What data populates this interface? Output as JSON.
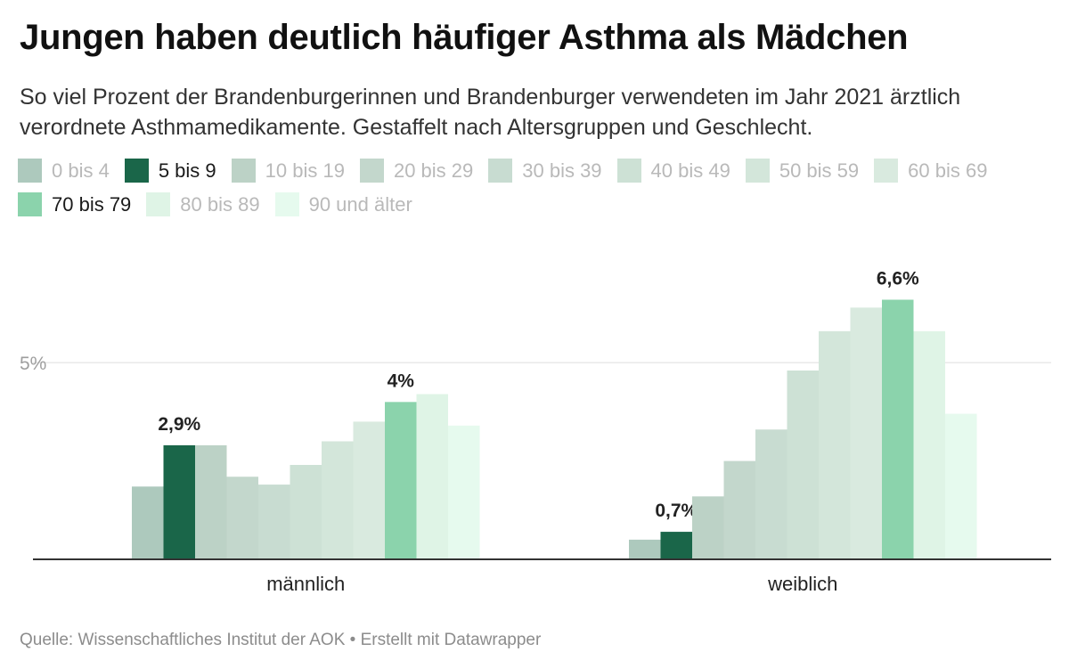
{
  "header": {
    "title": "Jungen haben deutlich häufiger Asthma als Mädchen",
    "subtitle": "So viel Prozent der Brandenburgerinnen und Brandenburger verwendeten im Jahr 2021 ärztlich verordnete Asthmamedikamente. Gestaffelt nach Altersgruppen und Geschlecht."
  },
  "footer": {
    "source": "Quelle: Wissenschaftliches Institut der AOK • Erstellt mit Datawrapper"
  },
  "chart_data": {
    "type": "bar",
    "title": "Jungen haben deutlich häufiger Asthma als Mädchen",
    "subtitle": "So viel Prozent der Brandenburgerinnen und Brandenburger verwendeten im Jahr 2021 ärztlich verordnete Asthmamedikamente. Gestaffelt nach Altersgruppen und Geschlecht.",
    "categories": [
      "männlich",
      "weiblich"
    ],
    "ylim": [
      0,
      7.2
    ],
    "y_ticks": [
      {
        "value": 5,
        "label": "5%"
      }
    ],
    "grid": true,
    "legend_position": "top",
    "series": [
      {
        "name": "0 bis 4",
        "color": "#adc9bd",
        "active": false,
        "values": [
          1.85,
          0.5
        ]
      },
      {
        "name": "5 bis 9",
        "color": "#1a6649",
        "active": true,
        "values": [
          2.9,
          0.7
        ],
        "labels": [
          "2,9%",
          "0,7%"
        ]
      },
      {
        "name": "10 bis 19",
        "color": "#bcd2c6",
        "active": false,
        "values": [
          2.9,
          1.6
        ]
      },
      {
        "name": "20 bis 29",
        "color": "#c3d7cc",
        "active": false,
        "values": [
          2.1,
          2.5
        ]
      },
      {
        "name": "30 bis 39",
        "color": "#c8dcd1",
        "active": false,
        "values": [
          1.9,
          3.3
        ]
      },
      {
        "name": "40 bis 49",
        "color": "#cde1d5",
        "active": false,
        "values": [
          2.4,
          4.8
        ]
      },
      {
        "name": "50 bis 59",
        "color": "#d3e6da",
        "active": false,
        "values": [
          3.0,
          5.8
        ]
      },
      {
        "name": "60 bis 69",
        "color": "#d9eadf",
        "active": false,
        "values": [
          3.5,
          6.4
        ]
      },
      {
        "name": "70 bis 79",
        "color": "#8bd3ac",
        "active": true,
        "values": [
          4.0,
          6.6
        ],
        "labels": [
          "4%",
          "6,6%"
        ]
      },
      {
        "name": "80 bis 89",
        "color": "#dff4e6",
        "active": false,
        "values": [
          4.2,
          5.8
        ]
      },
      {
        "name": "90 und älter",
        "color": "#e6faee",
        "active": false,
        "values": [
          3.4,
          3.7
        ]
      }
    ]
  }
}
